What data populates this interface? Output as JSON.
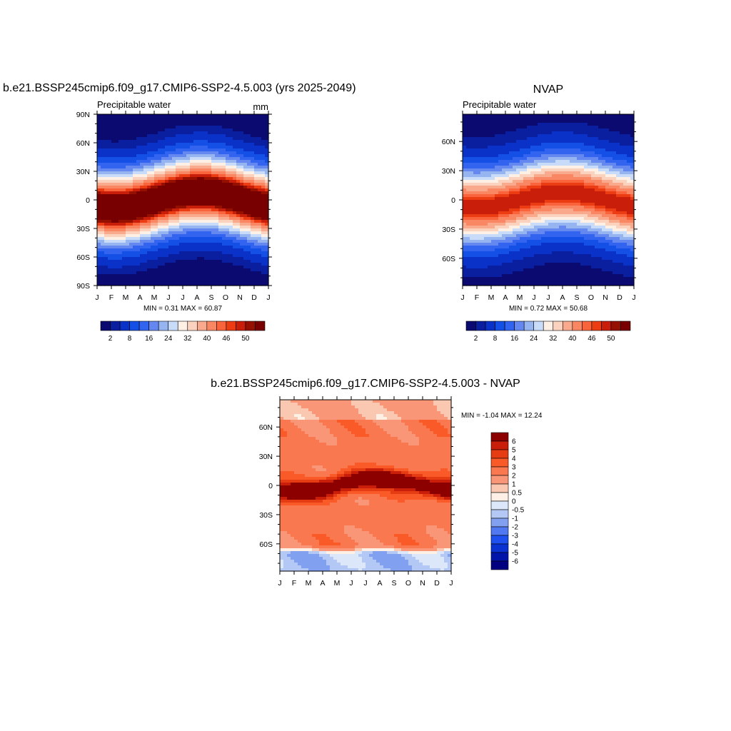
{
  "palette": {
    "abs": [
      "#0a0a70",
      "#0a1ea0",
      "#0a32c8",
      "#1450e6",
      "#3264f0",
      "#6488f0",
      "#96b4f0",
      "#c8dcfa",
      "#fff0e6",
      "#fad2be",
      "#faaa8c",
      "#fa8764",
      "#fa643c",
      "#eb3c14",
      "#c81e0a",
      "#961000",
      "#780000"
    ],
    "diff": [
      "#000080",
      "#0014aa",
      "#0a32d2",
      "#1e50f0",
      "#5078f0",
      "#82a0f0",
      "#b4c8f5",
      "#dce8fa",
      "#fff0e6",
      "#fac8b0",
      "#fa9678",
      "#fa7850",
      "#fa5a28",
      "#e63c14",
      "#c81e0a",
      "#8c0000"
    ]
  },
  "chart_data": [
    {
      "type": "heatmap",
      "title_left": "b.e21.BSSP245cmip6.f09_g17.CMIP6-SSP2-4.5.003 (yrs 2025-2049)",
      "subtitle_left": "Precipitable water",
      "subtitle_right": "mm",
      "x_tick_labels": [
        "J",
        "F",
        "M",
        "A",
        "M",
        "J",
        "J",
        "A",
        "S",
        "O",
        "N",
        "D",
        "J"
      ],
      "y_tick_labels": [
        "90N",
        "60N",
        "30N",
        "0",
        "30S",
        "60S",
        "90S"
      ],
      "y_tick_values": [
        90,
        60,
        30,
        0,
        -30,
        -60,
        -90
      ],
      "ylim": [
        -90,
        90
      ],
      "stats": "MIN =   0.31 MAX =  60.87",
      "min": 0.31,
      "max": 60.87,
      "levels": [
        2,
        4,
        8,
        12,
        16,
        20,
        24,
        28,
        32,
        36,
        40,
        44,
        46,
        48,
        50,
        52
      ],
      "colorbar_labels": [
        "2",
        "8",
        "16",
        "24",
        "32",
        "40",
        "46",
        "50"
      ],
      "colorbar_label_levels": [
        2,
        8,
        16,
        24,
        32,
        40,
        46,
        50
      ],
      "model": {
        "amp": 9,
        "phase": 7.2,
        "peak": 59,
        "width": 26,
        "floor": 0.5
      }
    },
    {
      "type": "heatmap",
      "title_center": "NVAP",
      "subtitle_left": "Precipitable water",
      "x_tick_labels": [
        "J",
        "F",
        "M",
        "A",
        "M",
        "J",
        "J",
        "A",
        "S",
        "O",
        "N",
        "D",
        "J"
      ],
      "y_tick_labels": [
        "60N",
        "30N",
        "0",
        "30S",
        "60S"
      ],
      "y_tick_values": [
        60,
        30,
        0,
        -30,
        -60
      ],
      "ylim": [
        -88,
        88
      ],
      "stats": "MIN =   0.72 MAX =  50.68",
      "min": 0.72,
      "max": 50.68,
      "levels": [
        2,
        4,
        8,
        12,
        16,
        20,
        24,
        28,
        32,
        36,
        40,
        44,
        46,
        48,
        50,
        52
      ],
      "colorbar_labels": [
        "2",
        "8",
        "16",
        "24",
        "32",
        "40",
        "46",
        "50"
      ],
      "colorbar_label_levels": [
        2,
        8,
        16,
        24,
        32,
        40,
        46,
        50
      ],
      "model": {
        "amp": 8,
        "phase": 7.0,
        "peak": 49,
        "width": 26,
        "floor": 1
      }
    },
    {
      "type": "heatmap",
      "title_center": "b.e21.BSSP245cmip6.f09_g17.CMIP6-SSP2-4.5.003 - NVAP",
      "x_tick_labels": [
        "J",
        "F",
        "M",
        "A",
        "M",
        "J",
        "J",
        "A",
        "S",
        "O",
        "N",
        "D",
        "J"
      ],
      "y_tick_labels": [
        "60N",
        "30N",
        "0",
        "30S",
        "60S"
      ],
      "y_tick_values": [
        60,
        30,
        0,
        -30,
        -60
      ],
      "ylim": [
        -88,
        88
      ],
      "stats": "MIN =  -1.04 MAX =  12.24",
      "min": -1.04,
      "max": 12.24,
      "levels": [
        -6,
        -5,
        -4,
        -3,
        -2,
        -1,
        -0.5,
        0,
        0.5,
        1,
        2,
        3,
        4,
        5,
        6
      ],
      "colorbar_labels": [
        "6",
        "5",
        "4",
        "3",
        "2",
        "1",
        "0.5",
        "0",
        "-0.5",
        "-1",
        "-2",
        "-3",
        "-4",
        "-5",
        "-6"
      ],
      "colorbar_label_levels": [
        6,
        5,
        4,
        3,
        2,
        1,
        0.5,
        0,
        -0.5,
        -1,
        -2,
        -3,
        -4,
        -5,
        -6
      ]
    }
  ]
}
